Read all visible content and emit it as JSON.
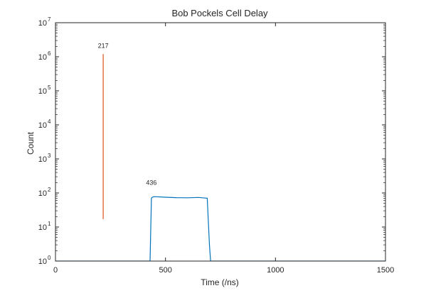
{
  "chart_data": {
    "type": "line",
    "title": "Bob Pockels Cell Delay",
    "xlabel": "Time (/ns)",
    "ylabel": "Count",
    "xlim": [
      0,
      1500
    ],
    "ylim": [
      1,
      10000000
    ],
    "yscale": "log",
    "grid": false,
    "x_ticks": [
      0,
      500,
      1000,
      1500
    ],
    "y_ticks": [
      {
        "value": 1,
        "base": "10",
        "exp": "0"
      },
      {
        "value": 10,
        "base": "10",
        "exp": "1"
      },
      {
        "value": 100,
        "base": "10",
        "exp": "2"
      },
      {
        "value": 1000,
        "base": "10",
        "exp": "3"
      },
      {
        "value": 10000,
        "base": "10",
        "exp": "4"
      },
      {
        "value": 100000,
        "base": "10",
        "exp": "5"
      },
      {
        "value": 1000000,
        "base": "10",
        "exp": "6"
      },
      {
        "value": 10000000,
        "base": "10",
        "exp": "7"
      }
    ],
    "series": [
      {
        "color": "#0072BD",
        "x": [
          0,
          100,
          200,
          300,
          400,
          430,
          436,
          440,
          450,
          500,
          550,
          600,
          650,
          690,
          700,
          705,
          750,
          800,
          900,
          1000,
          1100,
          1200,
          1300,
          1400,
          1500
        ],
        "y": [
          1,
          1,
          1,
          1,
          1,
          1,
          70,
          75,
          78,
          75,
          73,
          72,
          74,
          70,
          3,
          1,
          1,
          1,
          1,
          1,
          1,
          1,
          1,
          1,
          1
        ]
      },
      {
        "color": "#D95319",
        "x": [
          217,
          217
        ],
        "y": [
          17,
          1200000
        ]
      }
    ],
    "annotations": [
      {
        "text": "217",
        "x": 217,
        "y": 1800000
      },
      {
        "text": "436",
        "x": 436,
        "y": 175
      }
    ]
  }
}
